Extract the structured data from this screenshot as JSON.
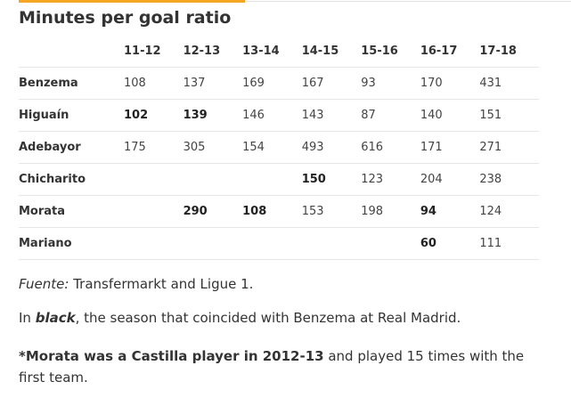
{
  "title": "Minutes per goal ratio",
  "table": {
    "columns": [
      "",
      "11-12",
      "12-13",
      "13-14",
      "14-15",
      "15-16",
      "16-17",
      "17-18"
    ],
    "rows": [
      {
        "name": "Benzema",
        "cells": [
          {
            "v": "108",
            "bold": false
          },
          {
            "v": "137",
            "bold": false
          },
          {
            "v": "169",
            "bold": false
          },
          {
            "v": "167",
            "bold": false
          },
          {
            "v": "93",
            "bold": false
          },
          {
            "v": "170",
            "bold": false
          },
          {
            "v": "431",
            "bold": false
          }
        ]
      },
      {
        "name": "Higuaín",
        "cells": [
          {
            "v": "102",
            "bold": true
          },
          {
            "v": "139",
            "bold": true
          },
          {
            "v": "146",
            "bold": false
          },
          {
            "v": "143",
            "bold": false
          },
          {
            "v": "87",
            "bold": false
          },
          {
            "v": "140",
            "bold": false
          },
          {
            "v": "151",
            "bold": false
          }
        ]
      },
      {
        "name": "Adebayor",
        "cells": [
          {
            "v": "175",
            "bold": false
          },
          {
            "v": "305",
            "bold": false
          },
          {
            "v": "154",
            "bold": false
          },
          {
            "v": "493",
            "bold": false
          },
          {
            "v": "616",
            "bold": false
          },
          {
            "v": "171",
            "bold": false
          },
          {
            "v": "271",
            "bold": false
          }
        ]
      },
      {
        "name": "Chicharito",
        "cells": [
          {
            "v": "",
            "bold": false
          },
          {
            "v": "",
            "bold": false
          },
          {
            "v": "",
            "bold": false
          },
          {
            "v": "150",
            "bold": true
          },
          {
            "v": "123",
            "bold": false
          },
          {
            "v": "204",
            "bold": false
          },
          {
            "v": "238",
            "bold": false
          }
        ]
      },
      {
        "name": "Morata",
        "cells": [
          {
            "v": "",
            "bold": false
          },
          {
            "v": "290",
            "bold": true
          },
          {
            "v": "108",
            "bold": true
          },
          {
            "v": "153",
            "bold": false
          },
          {
            "v": "198",
            "bold": false
          },
          {
            "v": "94",
            "bold": true
          },
          {
            "v": "124",
            "bold": false
          }
        ]
      },
      {
        "name": "Mariano",
        "cells": [
          {
            "v": "",
            "bold": false
          },
          {
            "v": "",
            "bold": false
          },
          {
            "v": "",
            "bold": false
          },
          {
            "v": "",
            "bold": false
          },
          {
            "v": "",
            "bold": false
          },
          {
            "v": "60",
            "bold": true
          },
          {
            "v": "111",
            "bold": false
          }
        ]
      }
    ]
  },
  "notes": {
    "source_label": "Fuente:",
    "source_text": " Transfermarkt and Ligue 1.",
    "legend_pre": "In ",
    "legend_bold": "black",
    "legend_post": ", the season that coincided with Benzema at Real Madrid.",
    "morata_bold": "*Morata was a Castilla player in 2012-13",
    "morata_rest": " and played 15 times with the first team."
  }
}
